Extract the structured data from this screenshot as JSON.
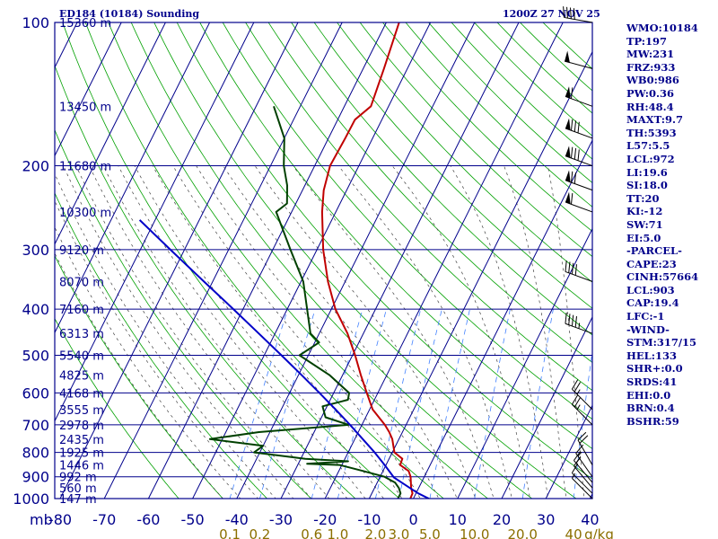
{
  "header": {
    "title": "ED184 (10184) Sounding",
    "time": "1200Z 27 NOV 25"
  },
  "params": [
    "WMO:10184",
    "TP:197",
    "MW:231",
    "FRZ:933",
    "WB0:986",
    "PW:0.36",
    "RH:48.4",
    "MAXT:9.7",
    "TH:5393",
    "L57:5.5",
    "LCL:972",
    "LI:19.6",
    "SI:18.0",
    "TT:20",
    "KI:-12",
    "SW:71",
    "EI:5.0",
    "-PARCEL-",
    "CAPE:23",
    "CINH:57664",
    "LCL:903",
    "CAP:19.4",
    "LFC:-1",
    "-WIND-",
    "STM:317/15",
    "HEL:133",
    "SHR+:0.0",
    "SRDS:41",
    "EHI:0.0",
    "BRN:0.4",
    "BSHR:59"
  ],
  "colors": {
    "frame": "#00008b",
    "isotherm": "#00008b",
    "dry_adiabat": "#00a000",
    "moist_adiabat": "#404040",
    "mixing_ratio": "#4080ff",
    "temperature": "#c00000",
    "dewpoint": "#004000",
    "parcel": "#0000c8",
    "wind": "#000000"
  },
  "chart_data": {
    "type": "skew-t",
    "y_axis": {
      "label": "mb",
      "scale": "log",
      "range": [
        1000,
        100
      ],
      "ticks": [
        {
          "p": 100,
          "label": "100"
        },
        {
          "p": 200,
          "label": "200"
        },
        {
          "p": 300,
          "label": "300"
        },
        {
          "p": 400,
          "label": "400"
        },
        {
          "p": 500,
          "label": "500"
        },
        {
          "p": 600,
          "label": "600"
        },
        {
          "p": 700,
          "label": "700"
        },
        {
          "p": 800,
          "label": "800"
        },
        {
          "p": 900,
          "label": "900"
        },
        {
          "p": 1000,
          "label": "1000"
        }
      ]
    },
    "x_axis": {
      "unit": "°C",
      "range": [
        -80,
        40
      ],
      "ticks": [
        {
          "t": -80,
          "label": "-80"
        },
        {
          "t": -70,
          "label": "-70"
        },
        {
          "t": -60,
          "label": "-60"
        },
        {
          "t": -50,
          "label": "-50"
        },
        {
          "t": -40,
          "label": "-40"
        },
        {
          "t": -30,
          "label": "-30"
        },
        {
          "t": -20,
          "label": "-20"
        },
        {
          "t": -10,
          "label": "-10"
        },
        {
          "t": 0,
          "label": "0"
        },
        {
          "t": 10,
          "label": "10"
        },
        {
          "t": 20,
          "label": "20"
        },
        {
          "t": 30,
          "label": "30"
        },
        {
          "t": 40,
          "label": "40"
        }
      ]
    },
    "height_labels": [
      {
        "p": 100,
        "label": "15360 m"
      },
      {
        "p": 150,
        "label": "13450 m"
      },
      {
        "p": 200,
        "label": "11680 m"
      },
      {
        "p": 250,
        "label": "10300 m"
      },
      {
        "p": 300,
        "label": "9120 m"
      },
      {
        "p": 350,
        "label": "8070 m"
      },
      {
        "p": 400,
        "label": "7160 m"
      },
      {
        "p": 450,
        "label": "6313 m"
      },
      {
        "p": 500,
        "label": "5540 m"
      },
      {
        "p": 550,
        "label": "4825 m"
      },
      {
        "p": 600,
        "label": "4168 m"
      },
      {
        "p": 650,
        "label": "3555 m"
      },
      {
        "p": 700,
        "label": "2978 m"
      },
      {
        "p": 750,
        "label": "2435 m"
      },
      {
        "p": 800,
        "label": "1925 m"
      },
      {
        "p": 850,
        "label": "1446 m"
      },
      {
        "p": 900,
        "label": "992 m"
      },
      {
        "p": 950,
        "label": "560 m"
      },
      {
        "p": 1000,
        "label": "147 m"
      }
    ],
    "mixing_ratio_labels": {
      "unit": "g/kg",
      "values": [
        "0.1",
        "0.2",
        "0.6",
        "1.0",
        "2.0",
        "3.0",
        "5.0",
        "10.0",
        "20.0",
        "40.0"
      ]
    },
    "series": [
      {
        "name": "temperature",
        "points": [
          [
            1018,
            -0.6
          ],
          [
            1000,
            -0.7
          ],
          [
            975,
            -0.8
          ],
          [
            950,
            -1.7
          ],
          [
            925,
            -2.4
          ],
          [
            900,
            -3.1
          ],
          [
            875,
            -4.2
          ],
          [
            850,
            -6.8
          ],
          [
            825,
            -7.0
          ],
          [
            800,
            -9.5
          ],
          [
            775,
            -10.5
          ],
          [
            750,
            -11.5
          ],
          [
            725,
            -13.0
          ],
          [
            700,
            -14.8
          ],
          [
            650,
            -19.3
          ],
          [
            600,
            -22.5
          ],
          [
            550,
            -25.9
          ],
          [
            500,
            -29.4
          ],
          [
            450,
            -33.6
          ],
          [
            400,
            -39.1
          ],
          [
            350,
            -43.9
          ],
          [
            300,
            -48.6
          ],
          [
            250,
            -53.1
          ],
          [
            225,
            -55.2
          ],
          [
            200,
            -56.5
          ],
          [
            175,
            -56.2
          ],
          [
            160,
            -56.1
          ],
          [
            150,
            -54.0
          ],
          [
            125,
            -55.3
          ],
          [
            100,
            -57.1
          ]
        ]
      },
      {
        "name": "dewpoint",
        "points": [
          [
            1018,
            -4.0
          ],
          [
            1000,
            -3.5
          ],
          [
            975,
            -3.5
          ],
          [
            950,
            -4.5
          ],
          [
            925,
            -6.0
          ],
          [
            900,
            -9.0
          ],
          [
            875,
            -14.5
          ],
          [
            850,
            -20.5
          ],
          [
            845,
            -28.0
          ],
          [
            835,
            -19.0
          ],
          [
            825,
            -29.0
          ],
          [
            800,
            -41.3
          ],
          [
            775,
            -40.0
          ],
          [
            750,
            -52.8
          ],
          [
            725,
            -42.5
          ],
          [
            700,
            -23.0
          ],
          [
            675,
            -29.1
          ],
          [
            640,
            -31.0
          ],
          [
            620,
            -26.0
          ],
          [
            600,
            -26.5
          ],
          [
            550,
            -33.0
          ],
          [
            500,
            -42.0
          ],
          [
            470,
            -39.0
          ],
          [
            450,
            -42.0
          ],
          [
            400,
            -45.5
          ],
          [
            350,
            -49.5
          ],
          [
            300,
            -56.0
          ],
          [
            250,
            -63.5
          ],
          [
            240,
            -62.0
          ],
          [
            220,
            -64.0
          ],
          [
            200,
            -67.0
          ],
          [
            175,
            -70.0
          ],
          [
            150,
            -76.0
          ]
        ]
      },
      {
        "name": "parcel",
        "points": [
          [
            1000,
            3.5
          ],
          [
            975,
            0.5
          ],
          [
            950,
            -2.0
          ],
          [
            925,
            -4.5
          ],
          [
            903,
            -6.8
          ],
          [
            850,
            -10.3
          ],
          [
            800,
            -14.0
          ],
          [
            750,
            -18.2
          ],
          [
            700,
            -22.7
          ],
          [
            650,
            -27.7
          ],
          [
            600,
            -33.2
          ],
          [
            550,
            -39.3
          ],
          [
            500,
            -46.1
          ],
          [
            450,
            -53.7
          ],
          [
            400,
            -62.2
          ],
          [
            350,
            -72.0
          ],
          [
            300,
            -83.2
          ],
          [
            260,
            -93.5
          ]
        ]
      }
    ],
    "wind_barbs": [
      {
        "p": 1000,
        "spd_kt": 5,
        "dir": 315
      },
      {
        "p": 975,
        "spd_kt": 10,
        "dir": 315
      },
      {
        "p": 950,
        "spd_kt": 10,
        "dir": 320
      },
      {
        "p": 925,
        "spd_kt": 15,
        "dir": 320
      },
      {
        "p": 900,
        "spd_kt": 15,
        "dir": 325
      },
      {
        "p": 850,
        "spd_kt": 20,
        "dir": 330
      },
      {
        "p": 700,
        "spd_kt": 25,
        "dir": 315
      },
      {
        "p": 650,
        "spd_kt": 25,
        "dir": 315
      },
      {
        "p": 450,
        "spd_kt": 45,
        "dir": 290
      },
      {
        "p": 350,
        "spd_kt": 40,
        "dir": 290
      },
      {
        "p": 250,
        "spd_kt": 60,
        "dir": 290
      },
      {
        "p": 225,
        "spd_kt": 70,
        "dir": 290
      },
      {
        "p": 200,
        "spd_kt": 80,
        "dir": 290
      },
      {
        "p": 175,
        "spd_kt": 80,
        "dir": 290
      },
      {
        "p": 150,
        "spd_kt": 60,
        "dir": 290
      },
      {
        "p": 125,
        "spd_kt": 50,
        "dir": 285
      },
      {
        "p": 100,
        "spd_kt": 40,
        "dir": 280
      }
    ]
  }
}
